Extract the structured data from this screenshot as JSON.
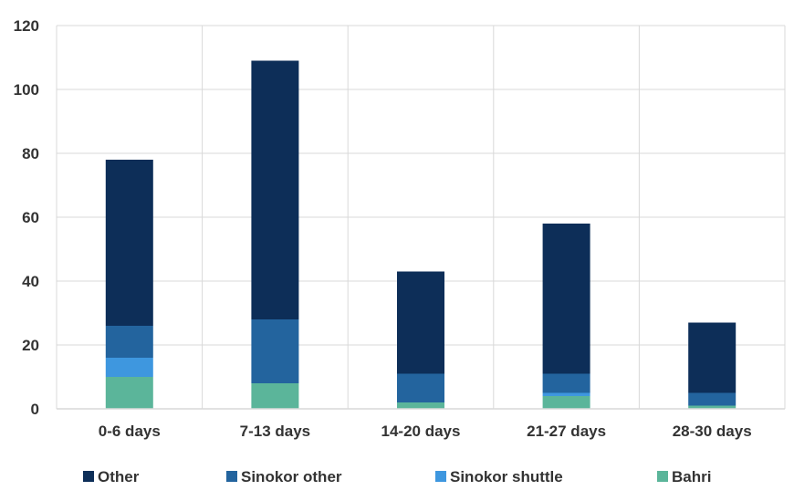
{
  "chart_data": {
    "type": "bar",
    "stacked": true,
    "title": "",
    "xlabel": "",
    "ylabel": "",
    "categories": [
      "0-6 days",
      "7-13 days",
      "14-20 days",
      "21-27 days",
      "28-30 days"
    ],
    "series": [
      {
        "name": "Bahri",
        "color": "#5bb59a",
        "values": [
          10,
          8,
          2,
          4,
          1
        ]
      },
      {
        "name": "Sinokor shuttle",
        "color": "#3e97df",
        "values": [
          6,
          0,
          0,
          1,
          0
        ]
      },
      {
        "name": "Sinokor other",
        "color": "#23649e",
        "values": [
          10,
          20,
          9,
          6,
          4
        ]
      },
      {
        "name": "Other",
        "color": "#0d2e58",
        "values": [
          52,
          81,
          32,
          47,
          22
        ]
      }
    ],
    "ylim": [
      0,
      120
    ],
    "yticks": [
      0,
      20,
      40,
      60,
      80,
      100,
      120
    ],
    "grid": true,
    "legend": {
      "position": "bottom",
      "order": [
        "Other",
        "Sinokor other",
        "Sinokor shuttle",
        "Bahri"
      ]
    }
  }
}
